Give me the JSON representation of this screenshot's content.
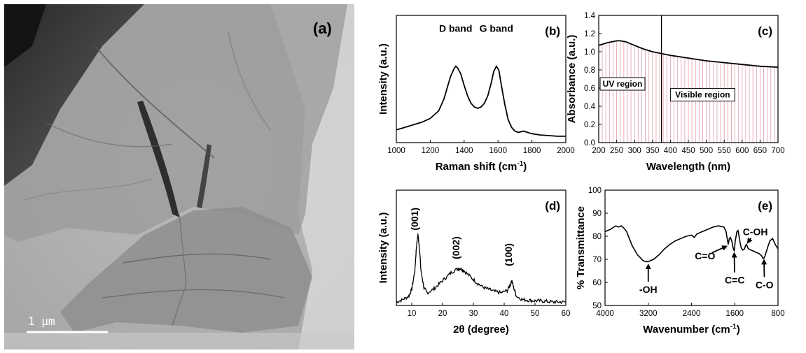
{
  "panel_labels": {
    "a": "(a)",
    "b": "(b)",
    "c": "(c)",
    "d": "(d)",
    "e": "(e)"
  },
  "tem": {
    "scale_bar": "1 µm"
  },
  "chart_data": [
    {
      "id": "b",
      "type": "line",
      "xlabel_main": "Raman shift (cm",
      "xlabel_sup": "-1",
      "xlabel_tail": ")",
      "ylabel": "Intensity (a.u.)",
      "xlim": [
        1000,
        2000
      ],
      "ylim": [
        0,
        1
      ],
      "xticks": [
        "1000",
        "1200",
        "1400",
        "1600",
        "1800",
        "2000"
      ],
      "xtick_values": [
        1000,
        1200,
        1400,
        1600,
        1800,
        2000
      ],
      "annotations": [
        {
          "text": "D band",
          "x": 1350,
          "y": 0.87
        },
        {
          "text": "G band",
          "x": 1590,
          "y": 0.87
        }
      ],
      "series": [
        {
          "x": [
            1000,
            1050,
            1100,
            1150,
            1200,
            1250,
            1280,
            1300,
            1320,
            1340,
            1350,
            1360,
            1380,
            1400,
            1420,
            1440,
            1460,
            1480,
            1500,
            1520,
            1540,
            1560,
            1575,
            1590,
            1605,
            1620,
            1640,
            1660,
            1680,
            1700,
            1720,
            1750,
            1800,
            1850,
            1900,
            1950,
            2000
          ],
          "y": [
            0.1,
            0.12,
            0.14,
            0.16,
            0.19,
            0.25,
            0.34,
            0.43,
            0.52,
            0.58,
            0.6,
            0.59,
            0.54,
            0.45,
            0.37,
            0.31,
            0.28,
            0.27,
            0.28,
            0.31,
            0.37,
            0.47,
            0.56,
            0.6,
            0.57,
            0.45,
            0.3,
            0.18,
            0.12,
            0.09,
            0.08,
            0.09,
            0.07,
            0.06,
            0.055,
            0.05,
            0.05
          ]
        }
      ]
    },
    {
      "id": "c",
      "type": "area",
      "xlabel": "Wavelength (nm)",
      "ylabel": "Absorbance (a.u.)",
      "xlim": [
        200,
        700
      ],
      "ylim": [
        0,
        1.4
      ],
      "xticks": [
        "200",
        "250",
        "300",
        "350",
        "400",
        "450",
        "500",
        "550",
        "600",
        "650",
        "700"
      ],
      "xtick_values": [
        200,
        250,
        300,
        350,
        400,
        450,
        500,
        550,
        600,
        650,
        700
      ],
      "yticks": [
        "0.0",
        "0.2",
        "0.4",
        "0.6",
        "0.8",
        "1.0",
        "1.2",
        "1.4"
      ],
      "ytick_values": [
        0,
        0.2,
        0.4,
        0.6,
        0.8,
        1.0,
        1.2,
        1.4
      ],
      "divider_x": 375,
      "region_labels": {
        "uv": "UV region",
        "visible": "Visible region"
      },
      "series": [
        {
          "x": [
            200,
            225,
            250,
            260,
            275,
            300,
            325,
            350,
            375,
            400,
            450,
            500,
            550,
            600,
            650,
            700
          ],
          "y": [
            1.07,
            1.1,
            1.12,
            1.12,
            1.11,
            1.07,
            1.03,
            1.0,
            0.98,
            0.96,
            0.93,
            0.9,
            0.88,
            0.86,
            0.84,
            0.83
          ]
        }
      ]
    },
    {
      "id": "d",
      "type": "line",
      "xlabel": "2θ (degree)",
      "ylabel": "Intensity (a.u.)",
      "xlim": [
        5,
        60
      ],
      "ylim": [
        0,
        1
      ],
      "xticks": [
        "10",
        "20",
        "30",
        "40",
        "50",
        "60"
      ],
      "xtick_values": [
        10,
        20,
        30,
        40,
        50,
        60
      ],
      "annotations": [
        {
          "text": "(001)",
          "x": 12,
          "y": 0.75
        },
        {
          "text": "(002)",
          "x": 25.5,
          "y": 0.5
        },
        {
          "text": "(100)",
          "x": 42.5,
          "y": 0.44
        }
      ],
      "series": [
        {
          "x": [
            5,
            7,
            9,
            10,
            11,
            11.5,
            12,
            12.5,
            13,
            14,
            15,
            17,
            19,
            21,
            23,
            25,
            26,
            27,
            29,
            31,
            33,
            35,
            37,
            39,
            41,
            42,
            42.5,
            43,
            44,
            46,
            48,
            50,
            52,
            54,
            56,
            58,
            60
          ],
          "y": [
            0.03,
            0.05,
            0.08,
            0.14,
            0.3,
            0.5,
            0.62,
            0.5,
            0.3,
            0.15,
            0.11,
            0.14,
            0.19,
            0.24,
            0.29,
            0.32,
            0.32,
            0.3,
            0.25,
            0.2,
            0.16,
            0.14,
            0.12,
            0.11,
            0.13,
            0.18,
            0.22,
            0.16,
            0.08,
            0.05,
            0.045,
            0.04,
            0.04,
            0.035,
            0.03,
            0.03,
            0.03
          ]
        }
      ]
    },
    {
      "id": "e",
      "type": "line",
      "xlabel_main": "Wavenumber (cm",
      "xlabel_sup": "-1",
      "xlabel_tail": ")",
      "ylabel": "% Transmittance",
      "xlim": [
        4000,
        800
      ],
      "ylim": [
        50,
        100
      ],
      "xticks": [
        "4000",
        "3200",
        "2400",
        "1600",
        "800"
      ],
      "xtick_values": [
        4000,
        3200,
        2400,
        1600,
        800
      ],
      "yticks": [
        "50",
        "60",
        "70",
        "80",
        "90",
        "100"
      ],
      "ytick_values": [
        50,
        60,
        70,
        80,
        90,
        100
      ],
      "annotations": [
        {
          "text": "-OH",
          "x": 3200,
          "y": 68.5,
          "tx": 3200,
          "ty": 57
        },
        {
          "text": "C=O",
          "x": 1720,
          "y": 76,
          "tx": 2150,
          "ty": 71.5
        },
        {
          "text": "C=C",
          "x": 1610,
          "y": 73.5,
          "tx": 1600,
          "ty": 61
        },
        {
          "text": "C-OH",
          "x": 1380,
          "y": 76.5,
          "tx": 1220,
          "ty": 82
        },
        {
          "text": "C-O",
          "x": 1060,
          "y": 70.5,
          "tx": 1050,
          "ty": 59
        }
      ],
      "series": [
        {
          "x": [
            4000,
            3900,
            3800,
            3750,
            3700,
            3650,
            3600,
            3550,
            3500,
            3400,
            3300,
            3250,
            3200,
            3150,
            3100,
            3000,
            2900,
            2800,
            2700,
            2600,
            2500,
            2400,
            2350,
            2300,
            2200,
            2100,
            2000,
            1900,
            1800,
            1760,
            1740,
            1720,
            1700,
            1680,
            1650,
            1630,
            1610,
            1590,
            1560,
            1540,
            1520,
            1500,
            1480,
            1450,
            1420,
            1400,
            1380,
            1360,
            1340,
            1300,
            1250,
            1200,
            1150,
            1100,
            1080,
            1060,
            1040,
            1020,
            980,
            950,
            900,
            850,
            800
          ],
          "y": [
            82,
            83,
            84.5,
            84,
            84.5,
            83.5,
            82,
            79,
            76,
            72,
            69.5,
            69,
            69,
            69.5,
            70,
            72,
            74.5,
            76.5,
            78,
            79,
            80,
            80.5,
            79.5,
            81,
            82,
            83,
            84,
            84.5,
            84,
            82,
            79,
            76.5,
            79,
            79.5,
            77.5,
            75,
            73.5,
            78,
            82,
            82.5,
            80,
            77,
            75,
            74,
            74.5,
            76,
            76.5,
            75,
            74.5,
            74,
            73.5,
            73,
            72.5,
            71.5,
            70.5,
            70.5,
            71.5,
            73,
            76,
            78,
            79,
            76.5,
            74.5
          ]
        }
      ]
    }
  ]
}
